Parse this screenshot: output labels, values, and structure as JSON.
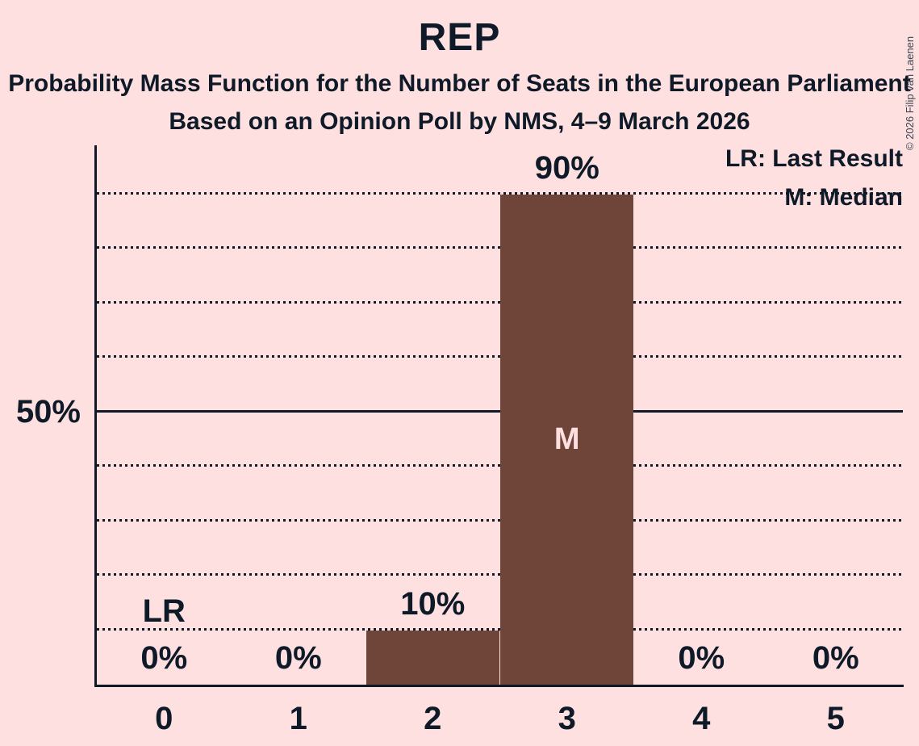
{
  "chart_data": {
    "type": "bar",
    "title": "REP",
    "subtitle1": "Probability Mass Function for the Number of Seats in the European Parliament",
    "subtitle2": "Based on an Opinion Poll by NMS, 4–9 March 2026",
    "copyright": "© 2026 Filip van Laenen",
    "categories": [
      "0",
      "1",
      "2",
      "3",
      "4",
      "5"
    ],
    "values": [
      0,
      0,
      10,
      90,
      0,
      0
    ],
    "value_labels": [
      "0%",
      "0%",
      "10%",
      "90%",
      "0%",
      "0%"
    ],
    "xlabel": "",
    "ylabel": "",
    "ylim": [
      0,
      100
    ],
    "y_tick_labels": {
      "50": "50%"
    },
    "gridlines_percent": [
      10,
      20,
      30,
      40,
      50,
      60,
      70,
      80,
      90
    ],
    "solid_gridline_percent": 50,
    "grid": "dotted horizontal lines every 10%",
    "legend_position": "top-right",
    "legend": {
      "lr": "LR: Last Result",
      "m": "M: Median"
    },
    "annotations": {
      "median_category": "3",
      "median_marker": "M",
      "last_result_category": "0",
      "last_result_marker": "LR"
    },
    "colors": {
      "background": "#ffe0e1",
      "bar": "#6f4439",
      "text": "#0f1a28",
      "median_marker_text": "#ffe0e1"
    }
  }
}
